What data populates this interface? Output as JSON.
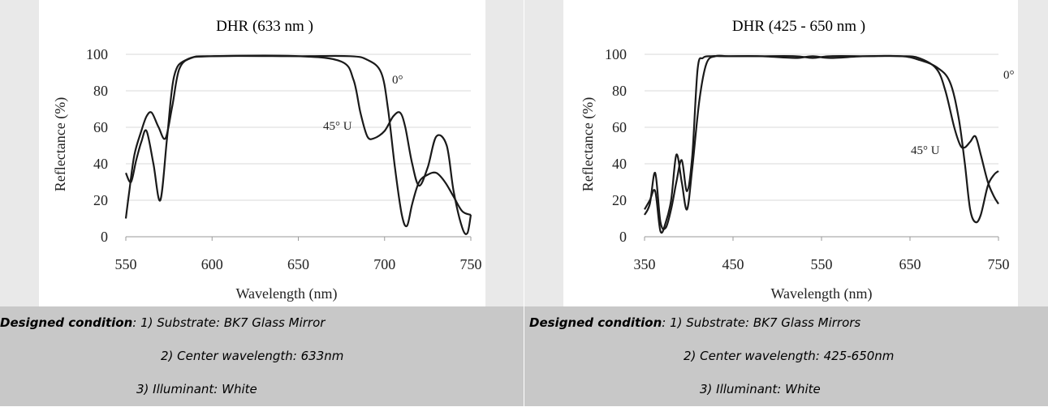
{
  "chart_data": [
    {
      "type": "line",
      "title": "DHR (633 nm )",
      "xlabel": "Wavelength (nm)",
      "ylabel": "Reflectance (%)",
      "xlim": [
        550,
        750
      ],
      "ylim": [
        0,
        100
      ],
      "xticks": [
        "550",
        "600",
        "650",
        "700",
        "750"
      ],
      "yticks": [
        "0",
        "20",
        "40",
        "60",
        "80",
        "100"
      ],
      "grid": true,
      "series": [
        {
          "name": "0°",
          "x": [
            550,
            553,
            556,
            559,
            562,
            566,
            570,
            574,
            578,
            585,
            600,
            650,
            680,
            690,
            698,
            702,
            706,
            710,
            713,
            716,
            720,
            725,
            730,
            735,
            740,
            745,
            750
          ],
          "y": [
            35,
            30,
            42,
            52,
            58,
            40,
            20,
            55,
            88,
            97,
            99,
            99,
            99,
            97,
            90,
            70,
            38,
            12,
            6,
            18,
            30,
            34,
            35,
            30,
            22,
            14,
            12
          ]
        },
        {
          "name": "45° U",
          "x": [
            550,
            552,
            555,
            559,
            562,
            565,
            569,
            573,
            577,
            581,
            588,
            600,
            650,
            675,
            682,
            686,
            690,
            694,
            700,
            705,
            709,
            712,
            716,
            720,
            725,
            730,
            736,
            740,
            745,
            748,
            750
          ],
          "y": [
            10,
            25,
            45,
            58,
            66,
            68,
            60,
            54,
            72,
            92,
            98,
            99,
            99,
            96,
            86,
            68,
            55,
            54,
            58,
            66,
            68,
            60,
            40,
            28,
            38,
            55,
            50,
            25,
            5,
            2,
            12
          ]
        }
      ],
      "annotations": [
        "0°",
        "45° U"
      ]
    },
    {
      "type": "line",
      "title": "DHR (425 - 650 nm )",
      "xlabel": "Wavelength (nm)",
      "ylabel": "Reflectance (%)",
      "xlim": [
        350,
        750
      ],
      "ylim": [
        0,
        100
      ],
      "xticks": [
        "350",
        "450",
        "550",
        "650",
        "750"
      ],
      "yticks": [
        "0",
        "20",
        "40",
        "60",
        "80",
        "100"
      ],
      "grid": true,
      "series": [
        {
          "name": "0°",
          "x": [
            350,
            356,
            362,
            368,
            374,
            380,
            386,
            392,
            398,
            404,
            410,
            416,
            425,
            440,
            480,
            520,
            540,
            560,
            600,
            640,
            660,
            680,
            695,
            705,
            712,
            718,
            724,
            730,
            738,
            745,
            750
          ],
          "y": [
            12,
            18,
            35,
            8,
            5,
            15,
            30,
            42,
            25,
            45,
            92,
            98,
            99,
            99,
            99,
            99,
            98,
            99,
            99,
            99,
            97,
            93,
            85,
            65,
            40,
            15,
            8,
            12,
            28,
            34,
            36
          ]
        },
        {
          "name": "45° U",
          "x": [
            350,
            356,
            362,
            368,
            374,
            380,
            386,
            392,
            398,
            404,
            412,
            420,
            430,
            445,
            480,
            520,
            540,
            560,
            600,
            640,
            660,
            680,
            690,
            700,
            707,
            712,
            718,
            724,
            730,
            738,
            745,
            750
          ],
          "y": [
            15,
            20,
            25,
            3,
            8,
            20,
            45,
            30,
            15,
            38,
            75,
            95,
            99,
            99,
            99,
            98,
            99,
            98,
            99,
            99,
            98,
            92,
            80,
            60,
            50,
            49,
            52,
            55,
            45,
            30,
            22,
            18
          ]
        }
      ],
      "annotations": [
        "0°",
        "45° U"
      ]
    }
  ],
  "captions": [
    {
      "lead": "Designed condition",
      "line1": ": 1) Substrate: BK7 Glass Mirror",
      "line2": "2) Center wavelength: 633nm",
      "line3": "3) Illuminant: White"
    },
    {
      "lead": "Designed condition",
      "line1": ": 1) Substrate: BK7 Glass Mirrors",
      "line2": "2) Center wavelength: 425-650nm",
      "line3": "3) Illuminant: White"
    }
  ]
}
